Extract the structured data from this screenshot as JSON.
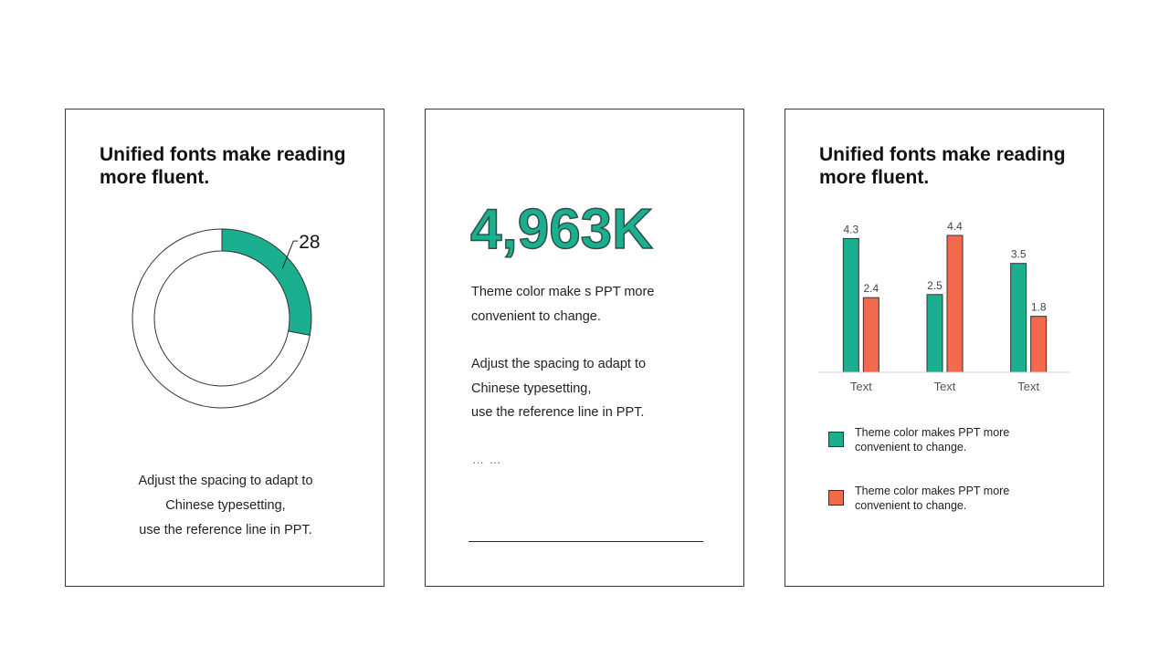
{
  "colors": {
    "accent": "#1aaf8e",
    "secondary": "#f26a4b",
    "ring": "#ffffff",
    "stroke": "#333333"
  },
  "card1": {
    "title_lines": [
      "Unified fonts make reading",
      "more fluent."
    ],
    "donut_label": "28",
    "desc_lines": [
      "Adjust the spacing to adapt to",
      "Chinese typesetting,",
      "use the reference line in PPT."
    ]
  },
  "card2": {
    "big_number": "4,963K",
    "para1_lines": [
      "Theme  color make s PPT more",
      "convenient to change."
    ],
    "para2_lines": [
      "Adjust the spacing to adapt to",
      "Chinese typesetting,",
      "use the reference line in PPT."
    ],
    "ellipsis": "… …"
  },
  "card3": {
    "title_lines": [
      "Unified fonts make reading",
      "more fluent."
    ],
    "legend": [
      {
        "lines": [
          "Theme  color makes PPT more",
          "convenient to change."
        ]
      },
      {
        "lines": [
          "Theme  color makes PPT more",
          "convenient to change."
        ]
      }
    ]
  },
  "chart_data": [
    {
      "type": "pie",
      "subtype": "donut",
      "values": [
        28,
        72
      ],
      "labels": [
        "28",
        ""
      ],
      "highlighted_value": 28,
      "start": "top, clockwise"
    },
    {
      "type": "bar",
      "categories": [
        "Text",
        "Text",
        "Text"
      ],
      "series": [
        {
          "values": [
            4.3,
            2.5,
            3.5
          ]
        },
        {
          "values": [
            2.4,
            4.4,
            1.8
          ]
        }
      ],
      "data_labels": true,
      "grid": false,
      "legend_position": "bottom"
    }
  ]
}
